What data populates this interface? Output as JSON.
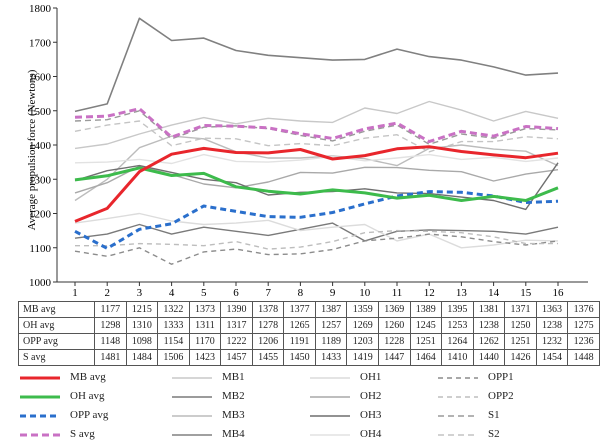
{
  "chart_data": {
    "type": "line",
    "ylabel": "Average propulsion force (Newtons)",
    "xlabel": "",
    "ylim": [
      1000,
      1800
    ],
    "yticks": [
      1000,
      1100,
      1200,
      1300,
      1400,
      1500,
      1600,
      1700,
      1800
    ],
    "categories": [
      "1",
      "2",
      "3",
      "4",
      "5",
      "6",
      "7",
      "8",
      "9",
      "10",
      "11",
      "12",
      "13",
      "14",
      "15",
      "16"
    ],
    "grid": false,
    "legend_position": "bottom",
    "series": [
      {
        "name": "MB avg",
        "color": "#e8262c",
        "width": 3,
        "dash": "",
        "values": [
          1177,
          1215,
          1322,
          1373,
          1390,
          1378,
          1377,
          1387,
          1359,
          1369,
          1389,
          1395,
          1381,
          1371,
          1363,
          1376
        ]
      },
      {
        "name": "OH avg",
        "color": "#3dbb4c",
        "width": 3,
        "dash": "",
        "values": [
          1298,
          1310,
          1333,
          1311,
          1317,
          1278,
          1265,
          1257,
          1269,
          1260,
          1245,
          1253,
          1238,
          1250,
          1238,
          1275
        ]
      },
      {
        "name": "OPP avg",
        "color": "#2a6fcc",
        "width": 3,
        "dash": "6,4",
        "values": [
          1148,
          1098,
          1154,
          1170,
          1222,
          1206,
          1191,
          1189,
          1203,
          1228,
          1251,
          1264,
          1262,
          1251,
          1232,
          1236
        ]
      },
      {
        "name": "S avg",
        "color": "#c971c4",
        "width": 3,
        "dash": "7,4",
        "values": [
          1481,
          1484,
          1506,
          1423,
          1457,
          1455,
          1450,
          1433,
          1419,
          1447,
          1464,
          1410,
          1440,
          1426,
          1454,
          1448
        ]
      },
      {
        "name": "MB1",
        "color": "#c8c8c8",
        "width": 1.4,
        "dash": "",
        "values": [
          1390,
          1403,
          1432,
          1458,
          1480,
          1462,
          1478,
          1470,
          1466,
          1508,
          1492,
          1527,
          1502,
          1470,
          1498,
          1478
        ]
      },
      {
        "name": "MB2",
        "color": "#7a7a7a",
        "width": 1.4,
        "dash": "",
        "values": [
          1128,
          1140,
          1168,
          1140,
          1160,
          1148,
          1136,
          1154,
          1172,
          1120,
          1148,
          1152,
          1150,
          1148,
          1140,
          1160
        ]
      },
      {
        "name": "MB3",
        "color": "#bcbcbc",
        "width": 1.4,
        "dash": "",
        "values": [
          1238,
          1300,
          1392,
          1426,
          1418,
          1380,
          1362,
          1362,
          1368,
          1360,
          1340,
          1390,
          1400,
          1388,
          1382,
          1340
        ]
      },
      {
        "name": "MB4",
        "color": "#808080",
        "width": 1.6,
        "dash": "",
        "values": [
          1498,
          1520,
          1770,
          1705,
          1712,
          1676,
          1662,
          1655,
          1648,
          1650,
          1680,
          1658,
          1648,
          1628,
          1604,
          1610
        ]
      },
      {
        "name": "OH1",
        "color": "#dcdcdc",
        "width": 1.4,
        "dash": "",
        "values": [
          1172,
          1185,
          1200,
          1178,
          1168,
          1172,
          1180,
          1150,
          1160,
          1168,
          1120,
          1140,
          1100,
          1108,
          1122,
          1120
        ]
      },
      {
        "name": "OH2",
        "color": "#a9a9a9",
        "width": 1.4,
        "dash": "",
        "values": [
          1260,
          1290,
          1338,
          1314,
          1286,
          1275,
          1292,
          1320,
          1318,
          1335,
          1334,
          1326,
          1322,
          1295,
          1315,
          1328
        ]
      },
      {
        "name": "OH3",
        "color": "#6f6f6f",
        "width": 1.4,
        "dash": "",
        "values": [
          1296,
          1325,
          1340,
          1320,
          1300,
          1290,
          1254,
          1262,
          1264,
          1272,
          1260,
          1258,
          1248,
          1238,
          1212,
          1348
        ]
      },
      {
        "name": "OH4",
        "color": "#e2e2e2",
        "width": 1.4,
        "dash": "",
        "values": [
          1348,
          1350,
          1358,
          1346,
          1372,
          1352,
          1350,
          1356,
          1366,
          1354,
          1362,
          1372,
          1358,
          1364,
          1352,
          1362
        ]
      },
      {
        "name": "OPP1",
        "color": "#8c8c8c",
        "width": 1.4,
        "dash": "5,4",
        "values": [
          1090,
          1075,
          1100,
          1052,
          1088,
          1096,
          1080,
          1082,
          1095,
          1120,
          1128,
          1140,
          1132,
          1118,
          1108,
          1120
        ]
      },
      {
        "name": "OPP2",
        "color": "#bdbdbd",
        "width": 1.4,
        "dash": "5,4",
        "values": [
          1106,
          1106,
          1112,
          1110,
          1106,
          1118,
          1096,
          1102,
          1118,
          1144,
          1150,
          1148,
          1144,
          1132,
          1112,
          1112
        ]
      },
      {
        "name": "S1",
        "color": "#9a9a9a",
        "width": 1.4,
        "dash": "6,4",
        "values": [
          1470,
          1474,
          1500,
          1418,
          1452,
          1456,
          1448,
          1428,
          1412,
          1440,
          1458,
          1402,
          1432,
          1420,
          1448,
          1444
        ]
      },
      {
        "name": "S2",
        "color": "#c4c4c4",
        "width": 1.4,
        "dash": "6,4",
        "values": [
          1440,
          1458,
          1470,
          1398,
          1420,
          1418,
          1398,
          1404,
          1398,
          1420,
          1430,
          1380,
          1410,
          1410,
          1424,
          1418
        ]
      }
    ],
    "table_rows": [
      {
        "label": "MB avg",
        "values": [
          "1177",
          "1215",
          "1322",
          "1373",
          "1390",
          "1378",
          "1377",
          "1387",
          "1359",
          "1369",
          "1389",
          "1395",
          "1381",
          "1371",
          "1363",
          "1376"
        ]
      },
      {
        "label": "OH avg",
        "values": [
          "1298",
          "1310",
          "1333",
          "1311",
          "1317",
          "1278",
          "1265",
          "1257",
          "1269",
          "1260",
          "1245",
          "1253",
          "1238",
          "1250",
          "1238",
          "1275"
        ]
      },
      {
        "label": "OPP avg",
        "values": [
          "1148",
          "1098",
          "1154",
          "1170",
          "1222",
          "1206",
          "1191",
          "1189",
          "1203",
          "1228",
          "1251",
          "1264",
          "1262",
          "1251",
          "1232",
          "1236"
        ]
      },
      {
        "label": "S avg",
        "values": [
          "1481",
          "1484",
          "1506",
          "1423",
          "1457",
          "1455",
          "1450",
          "1433",
          "1419",
          "1447",
          "1464",
          "1410",
          "1440",
          "1426",
          "1454",
          "1448"
        ]
      }
    ],
    "legend_columns": [
      [
        "MB avg",
        "OH avg",
        "OPP avg",
        "S avg"
      ],
      [
        "MB1",
        "MB2",
        "MB3",
        "MB4"
      ],
      [
        "OH1",
        "OH2",
        "OH3",
        "OH4"
      ],
      [
        "OPP1",
        "OPP2",
        "S1",
        "S2"
      ]
    ]
  }
}
